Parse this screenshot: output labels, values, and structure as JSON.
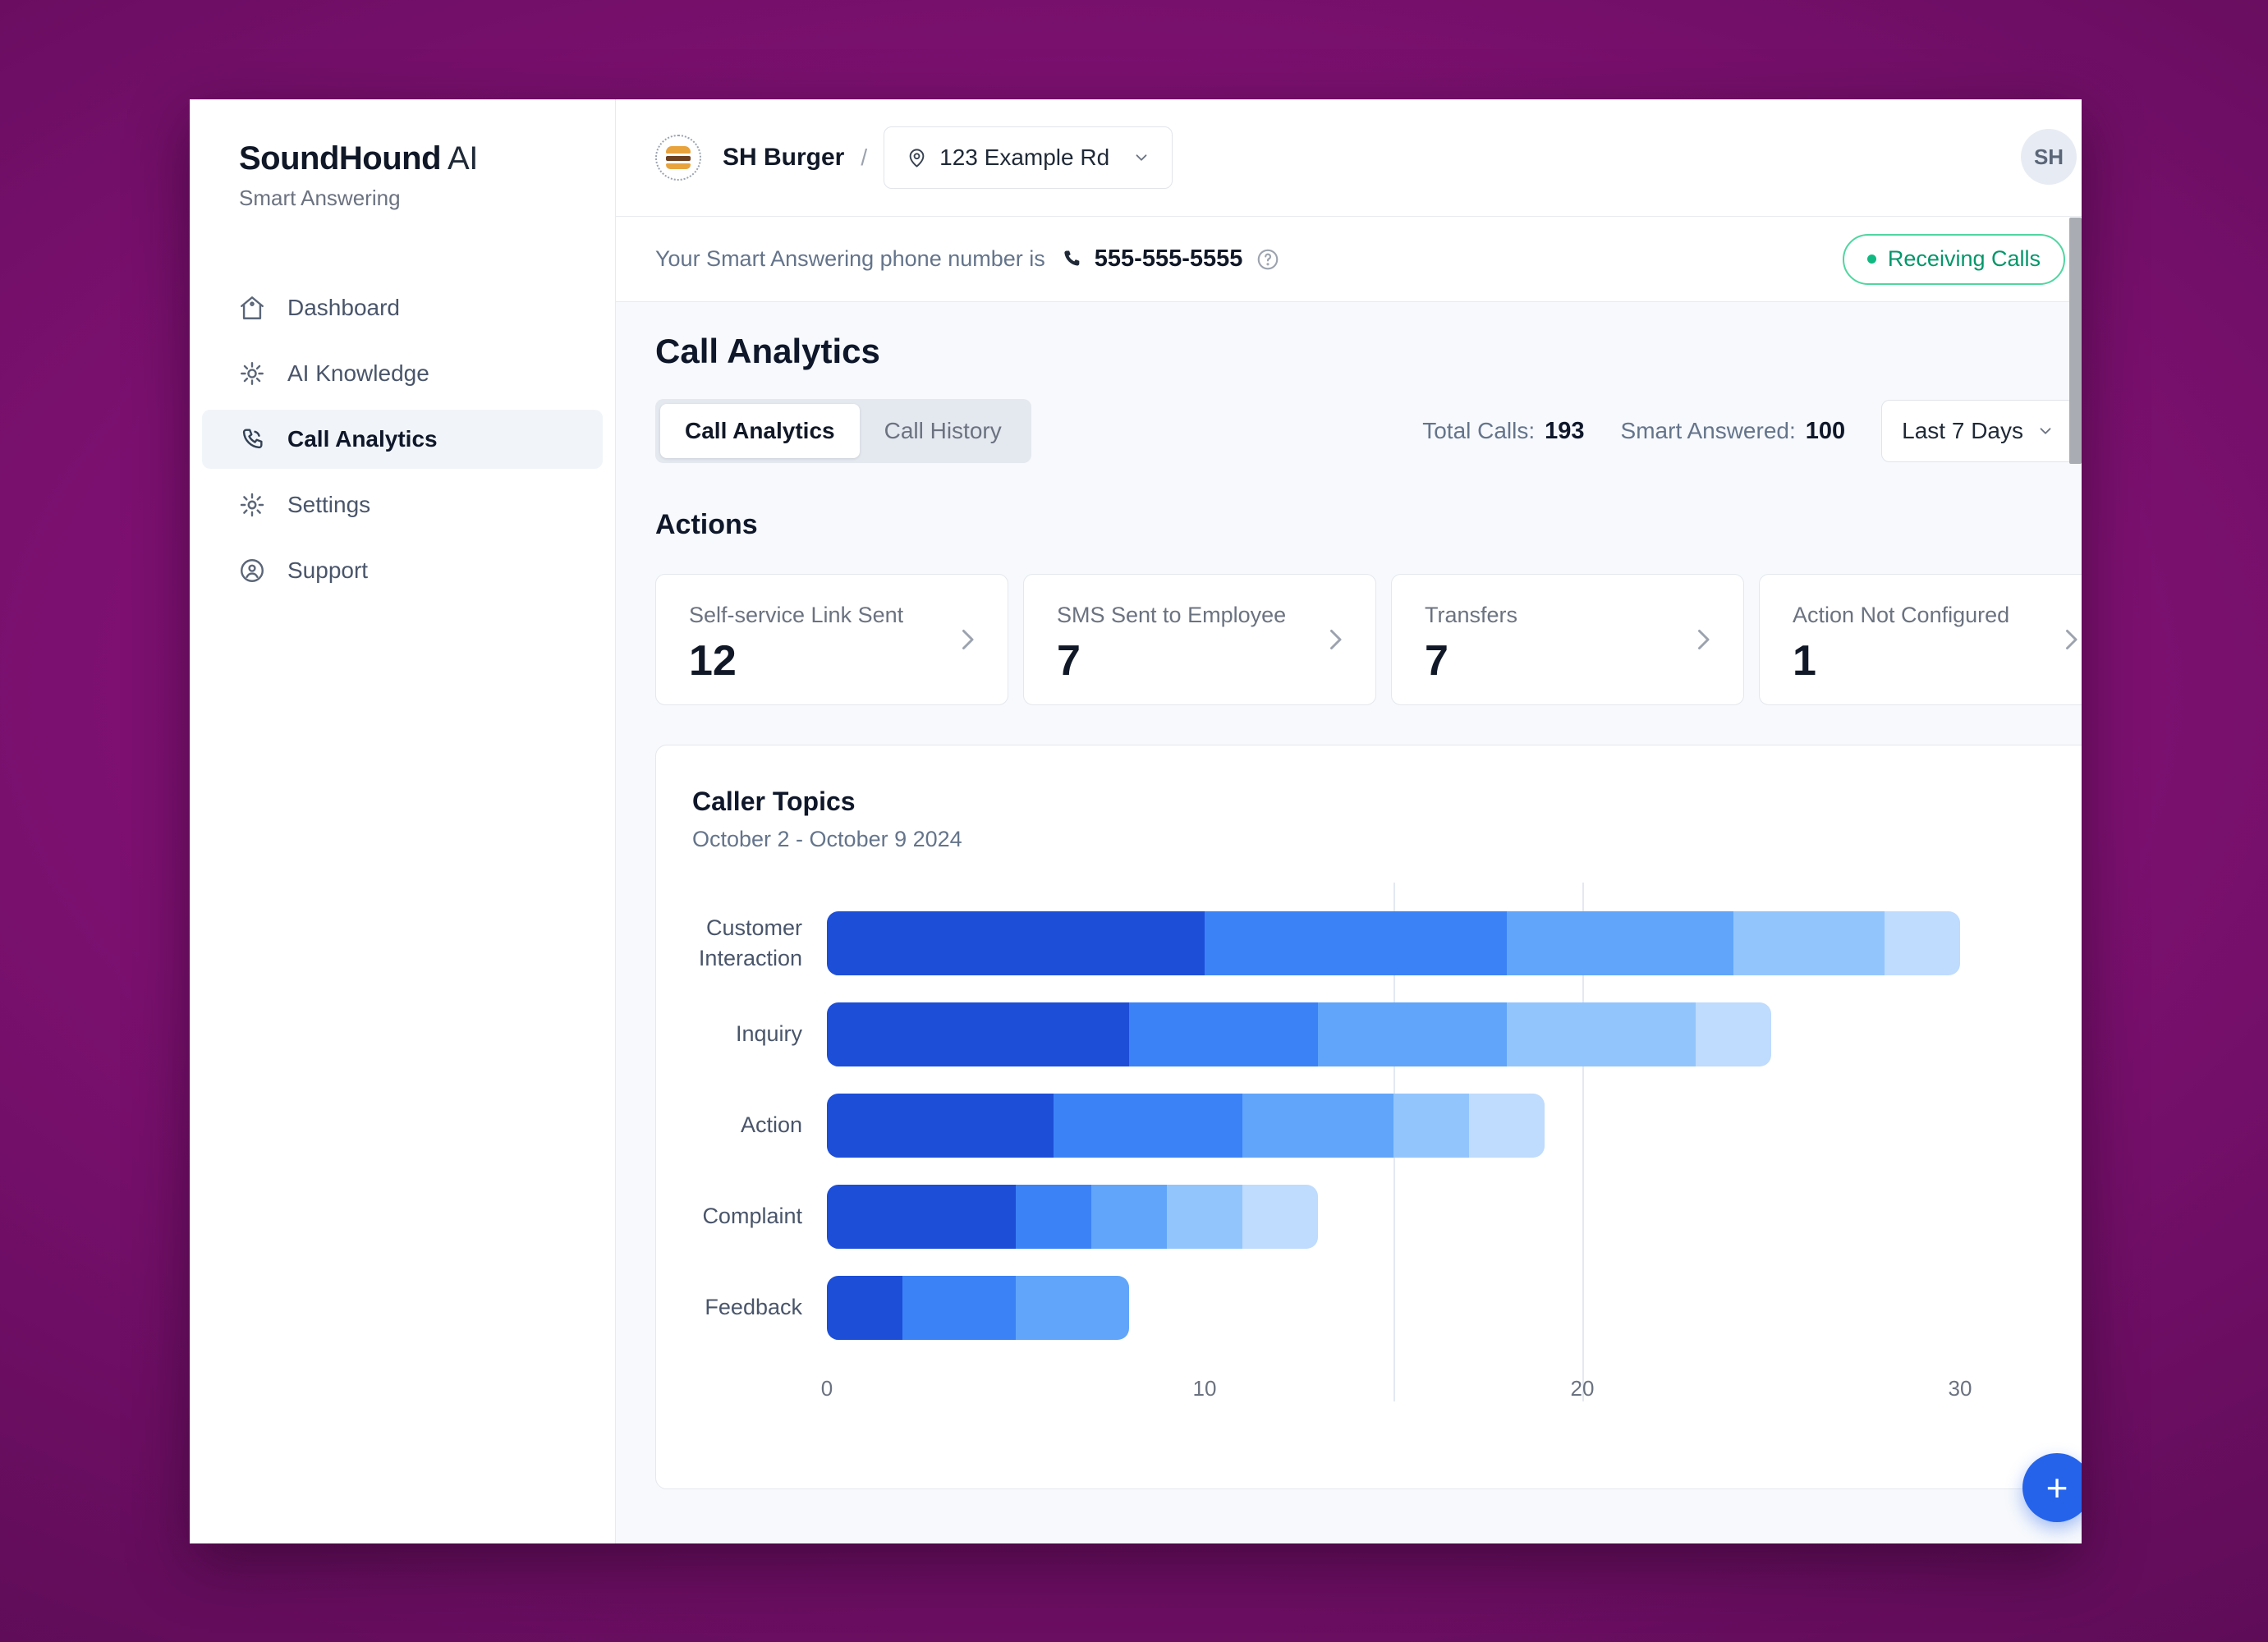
{
  "sidebar": {
    "logo_bold": "SoundHound",
    "logo_light": "AI",
    "subtitle": "Smart Answering",
    "items": [
      {
        "label": "Dashboard"
      },
      {
        "label": "AI Knowledge"
      },
      {
        "label": "Call Analytics",
        "active": true
      },
      {
        "label": "Settings"
      },
      {
        "label": "Support"
      }
    ]
  },
  "header": {
    "business_name": "SH Burger",
    "separator": "/",
    "location": "123 Example Rd",
    "avatar_initials": "SH"
  },
  "phone_bar": {
    "label": "Your Smart Answering phone number is",
    "number": "555-555-5555",
    "status_badge": "Receiving Calls"
  },
  "page": {
    "title": "Call Analytics",
    "tabs": [
      {
        "label": "Call Analytics",
        "active": true
      },
      {
        "label": "Call History",
        "active": false
      }
    ],
    "stats": [
      {
        "label": "Total Calls:",
        "value": "193"
      },
      {
        "label": "Smart Answered:",
        "value": "100"
      }
    ],
    "date_filter": "Last 7 Days"
  },
  "actions": {
    "heading": "Actions",
    "cards": [
      {
        "label": "Self-service Link Sent",
        "value": "12"
      },
      {
        "label": "SMS Sent to Employee",
        "value": "7"
      },
      {
        "label": "Transfers",
        "value": "7"
      },
      {
        "label": "Action Not Configured",
        "value": "1"
      }
    ]
  },
  "chart_data": {
    "type": "stacked-bar-horizontal",
    "title": "Caller Topics",
    "subtitle": "October 2 - October 9 2024",
    "categories": [
      "Customer Interaction",
      "Inquiry",
      "Action",
      "Complaint",
      "Feedback"
    ],
    "segments": [
      [
        10,
        8,
        6,
        4,
        2
      ],
      [
        8,
        5,
        5,
        5,
        2
      ],
      [
        6,
        5,
        4,
        2,
        2
      ],
      [
        5,
        2,
        2,
        2,
        2
      ],
      [
        2,
        3,
        3
      ]
    ],
    "totals": [
      30,
      25,
      19,
      13,
      8
    ],
    "xticks": [
      0,
      10,
      20,
      30
    ],
    "gridlines": [
      15,
      20
    ],
    "xlim": [
      0,
      30
    ],
    "palette": [
      "#1d4ed8",
      "#3b82f6",
      "#60a5fa",
      "#93c5fd",
      "#bfdbfe"
    ],
    "legend_position": "none",
    "grid": "partial-vertical"
  },
  "fab": {
    "label": "+"
  },
  "colors": {
    "accent_blue": "#2563eb",
    "status_green_text": "#059669",
    "status_green_border": "#4fd6a0",
    "status_green_dot": "#10b981",
    "background_purple": "#7c1070"
  }
}
